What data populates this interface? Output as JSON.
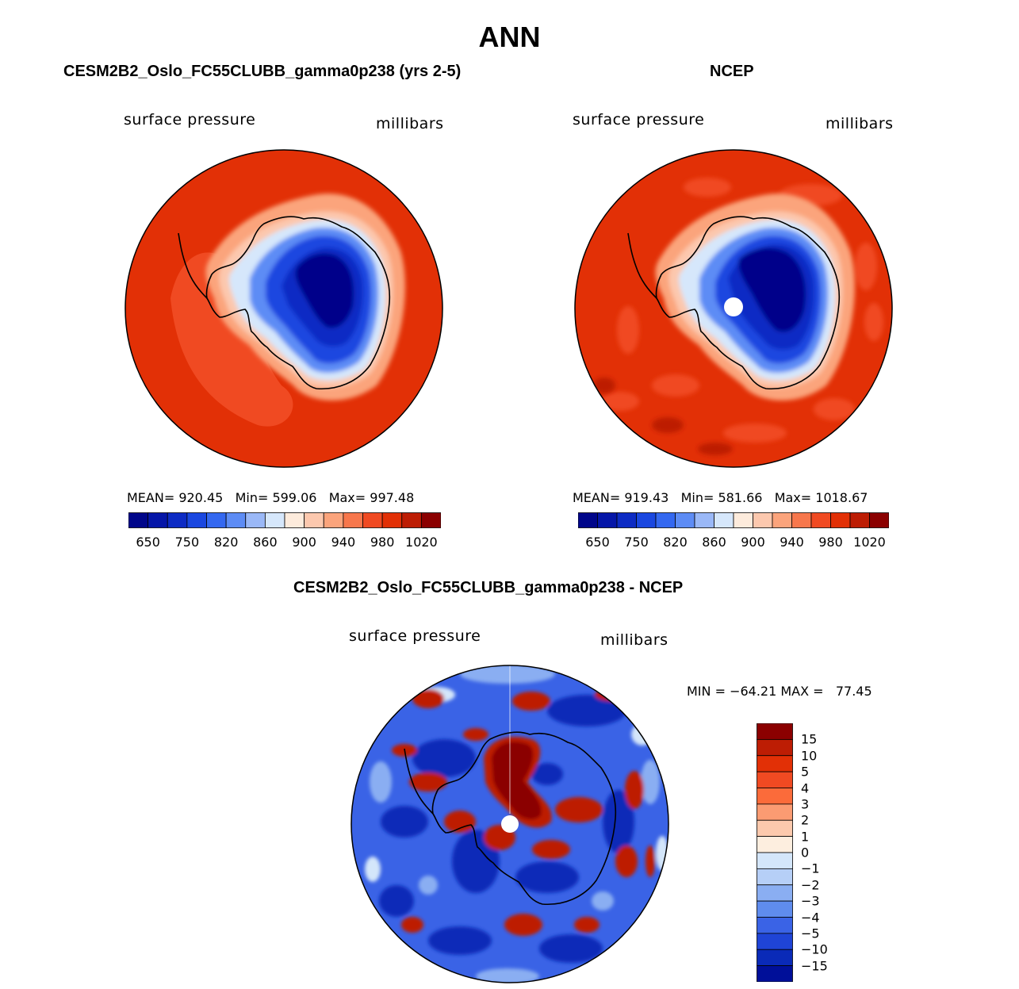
{
  "title": "ANN",
  "panels": [
    {
      "id": "model",
      "title": "CESM2B2_Oslo_FC55CLUBB_gamma0p238 (yrs 2-5)",
      "left_label": "surface pressure",
      "right_label": "millibars",
      "stats": "MEAN= 920.45   Min= 599.06   Max= 997.48"
    },
    {
      "id": "obs",
      "title": "NCEP",
      "left_label": "surface pressure",
      "right_label": "millibars",
      "stats": "MEAN= 919.43   Min= 581.66   Max= 1018.67"
    },
    {
      "id": "diff",
      "title": "CESM2B2_Oslo_FC55CLUBB_gamma0p238 - NCEP",
      "left_label": "surface pressure",
      "right_label": "millibars",
      "stats": "MIN = −64.21 MAX =   77.45"
    }
  ],
  "abs_colorbar": {
    "colors": [
      "#00068a",
      "#0516a8",
      "#0d2bc4",
      "#1a47e0",
      "#3468f0",
      "#5d8cf5",
      "#9ab8f7",
      "#d6e7fb",
      "#fdebdc",
      "#fcc8ae",
      "#fba47c",
      "#f7774c",
      "#f04a22",
      "#e23006",
      "#bd1d04",
      "#8b0000"
    ],
    "tick_labels": [
      "650",
      "750",
      "820",
      "860",
      "900",
      "940",
      "980",
      "1020"
    ]
  },
  "diff_colorbar": {
    "colors": [
      "#8b0000",
      "#bd1d04",
      "#e23006",
      "#f04a22",
      "#fb6b3a",
      "#fb9b72",
      "#fcc9ad",
      "#fdeedf",
      "#d4e6fa",
      "#b6cff7",
      "#8aaef2",
      "#5f8cee",
      "#3a63e6",
      "#1f44d6",
      "#0a2ab8",
      "#000f99"
    ],
    "tick_labels": [
      "15",
      "10",
      "5",
      "4",
      "3",
      "2",
      "1",
      "0",
      "−1",
      "−2",
      "−3",
      "−4",
      "−5",
      "−10",
      "−15"
    ]
  },
  "map_colors": {
    "ocean_high": "#e23006",
    "orange_region": "#f04a22",
    "light_orange": "#fba47c",
    "peach": "#fcc8ae",
    "ice_edge": "#d6e7fb",
    "blue_light": "#5d8cf5",
    "blue_mid": "#1a47e0",
    "blue_dark": "#0d2bc4",
    "blue_deep": "#00068a",
    "diff_pos": "#bd1d04",
    "diff_neg": "#0a2ab8"
  }
}
